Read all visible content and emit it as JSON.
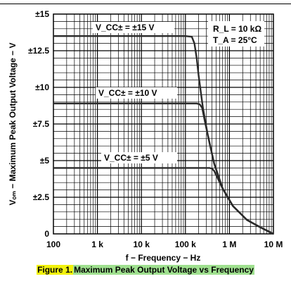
{
  "caption": {
    "figure_label": "Figure 1.",
    "title": "Maximum Peak Output Voltage vs Frequency"
  },
  "colors": {
    "curve": "#2a2a2a",
    "grid": "#000000",
    "caption_highlight_a": "#f2f20d",
    "caption_highlight_b": "#9fe08f"
  },
  "chart_data": {
    "type": "line",
    "xlabel": "f − Frequency − Hz",
    "ylabel": "Vₒₘ − Maximum Peak Output Voltage − V",
    "xscale": "log",
    "xlim": [
      100,
      10000000
    ],
    "ylim": [
      0,
      15
    ],
    "x_tick_labels": [
      "100",
      "1 k",
      "10 k",
      "100 k",
      "1 M",
      "10 M"
    ],
    "x_tick_values": [
      100,
      1000,
      10000,
      100000,
      1000000,
      10000000
    ],
    "y_tick_labels": [
      "0",
      "±2.5",
      "±5",
      "±7.5",
      "±10",
      "±12.5",
      "±15"
    ],
    "y_tick_values": [
      0,
      2.5,
      5,
      7.5,
      10,
      12.5,
      15
    ],
    "grid": true,
    "conditions": [
      "R_L = 10 kΩ",
      "T_A = 25°C"
    ],
    "series": [
      {
        "name": "V_CC± = ±15 V",
        "x": [
          100,
          1000,
          10000,
          100000,
          140000,
          160000,
          180000,
          200000,
          250000,
          320000,
          450000,
          700000,
          1200000,
          2500000,
          5000000,
          10000000
        ],
        "y": [
          13.5,
          13.5,
          13.5,
          13.5,
          13.45,
          13.0,
          12.0,
          10.8,
          8.6,
          6.8,
          4.8,
          3.1,
          1.9,
          0.95,
          0.45,
          0.0
        ]
      },
      {
        "name": "V_CC± = ±10 V",
        "x": [
          100,
          1000,
          10000,
          100000,
          180000,
          210000,
          240000,
          280000,
          320000,
          450000,
          700000,
          1200000,
          2500000,
          5000000,
          10000000
        ],
        "y": [
          8.9,
          8.9,
          8.9,
          8.9,
          8.9,
          8.85,
          8.6,
          7.6,
          6.8,
          4.8,
          3.1,
          1.9,
          0.95,
          0.45,
          0.0
        ]
      },
      {
        "name": "V_CC± = ±5 V",
        "x": [
          100,
          1000,
          10000,
          100000,
          350000,
          400000,
          450000,
          700000,
          1200000,
          2500000,
          5000000,
          10000000
        ],
        "y": [
          4.5,
          4.5,
          4.5,
          4.5,
          4.5,
          4.45,
          4.3,
          3.1,
          1.9,
          0.95,
          0.45,
          0.0
        ]
      }
    ]
  }
}
